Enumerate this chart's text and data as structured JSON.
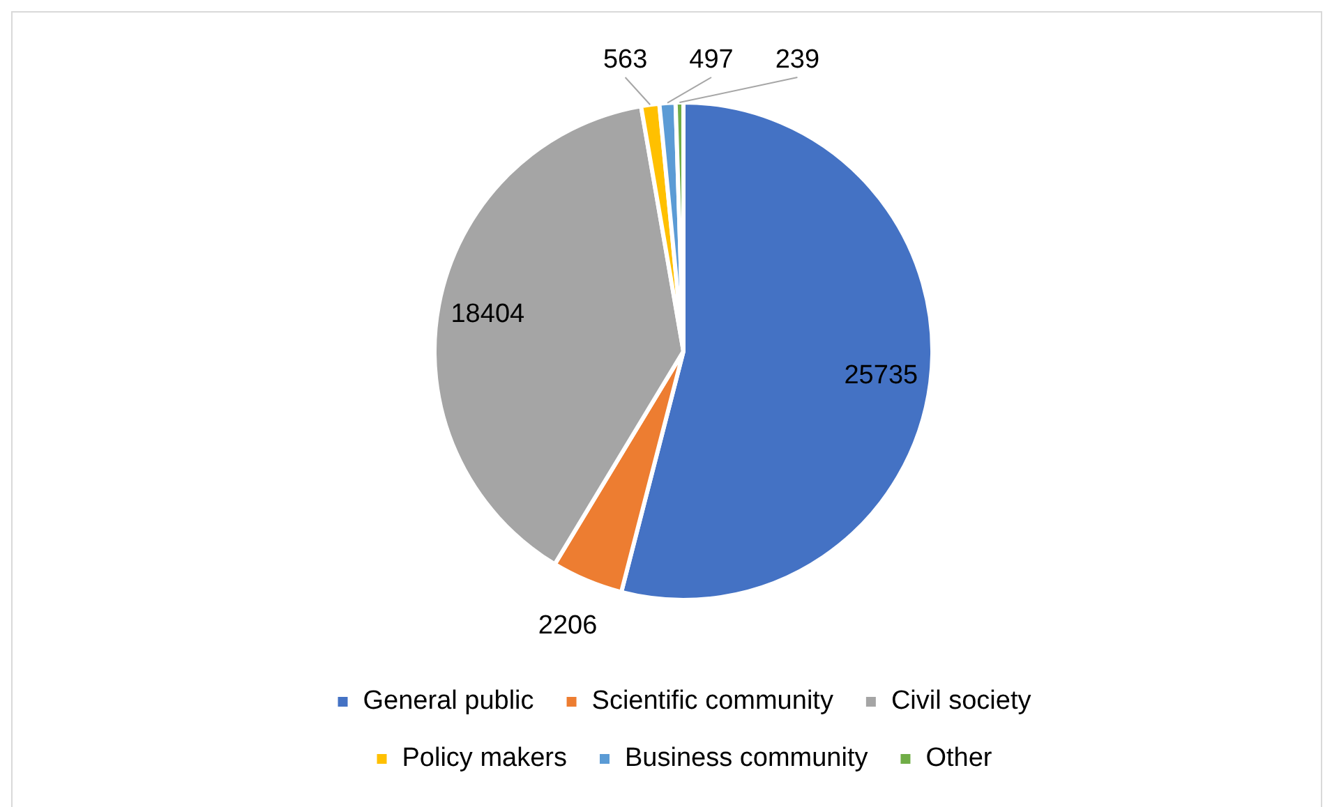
{
  "chart_data": {
    "type": "pie",
    "categories": [
      "General public",
      "Scientific community",
      "Civil society",
      "Policy makers",
      "Business community",
      "Other"
    ],
    "values": [
      25735,
      2206,
      18404,
      563,
      497,
      239
    ],
    "colors": [
      "#4472c4",
      "#ed7d31",
      "#a5a5a5",
      "#ffc000",
      "#5b9bd5",
      "#70ad47"
    ],
    "data_labels": true,
    "legend": "bottom"
  }
}
